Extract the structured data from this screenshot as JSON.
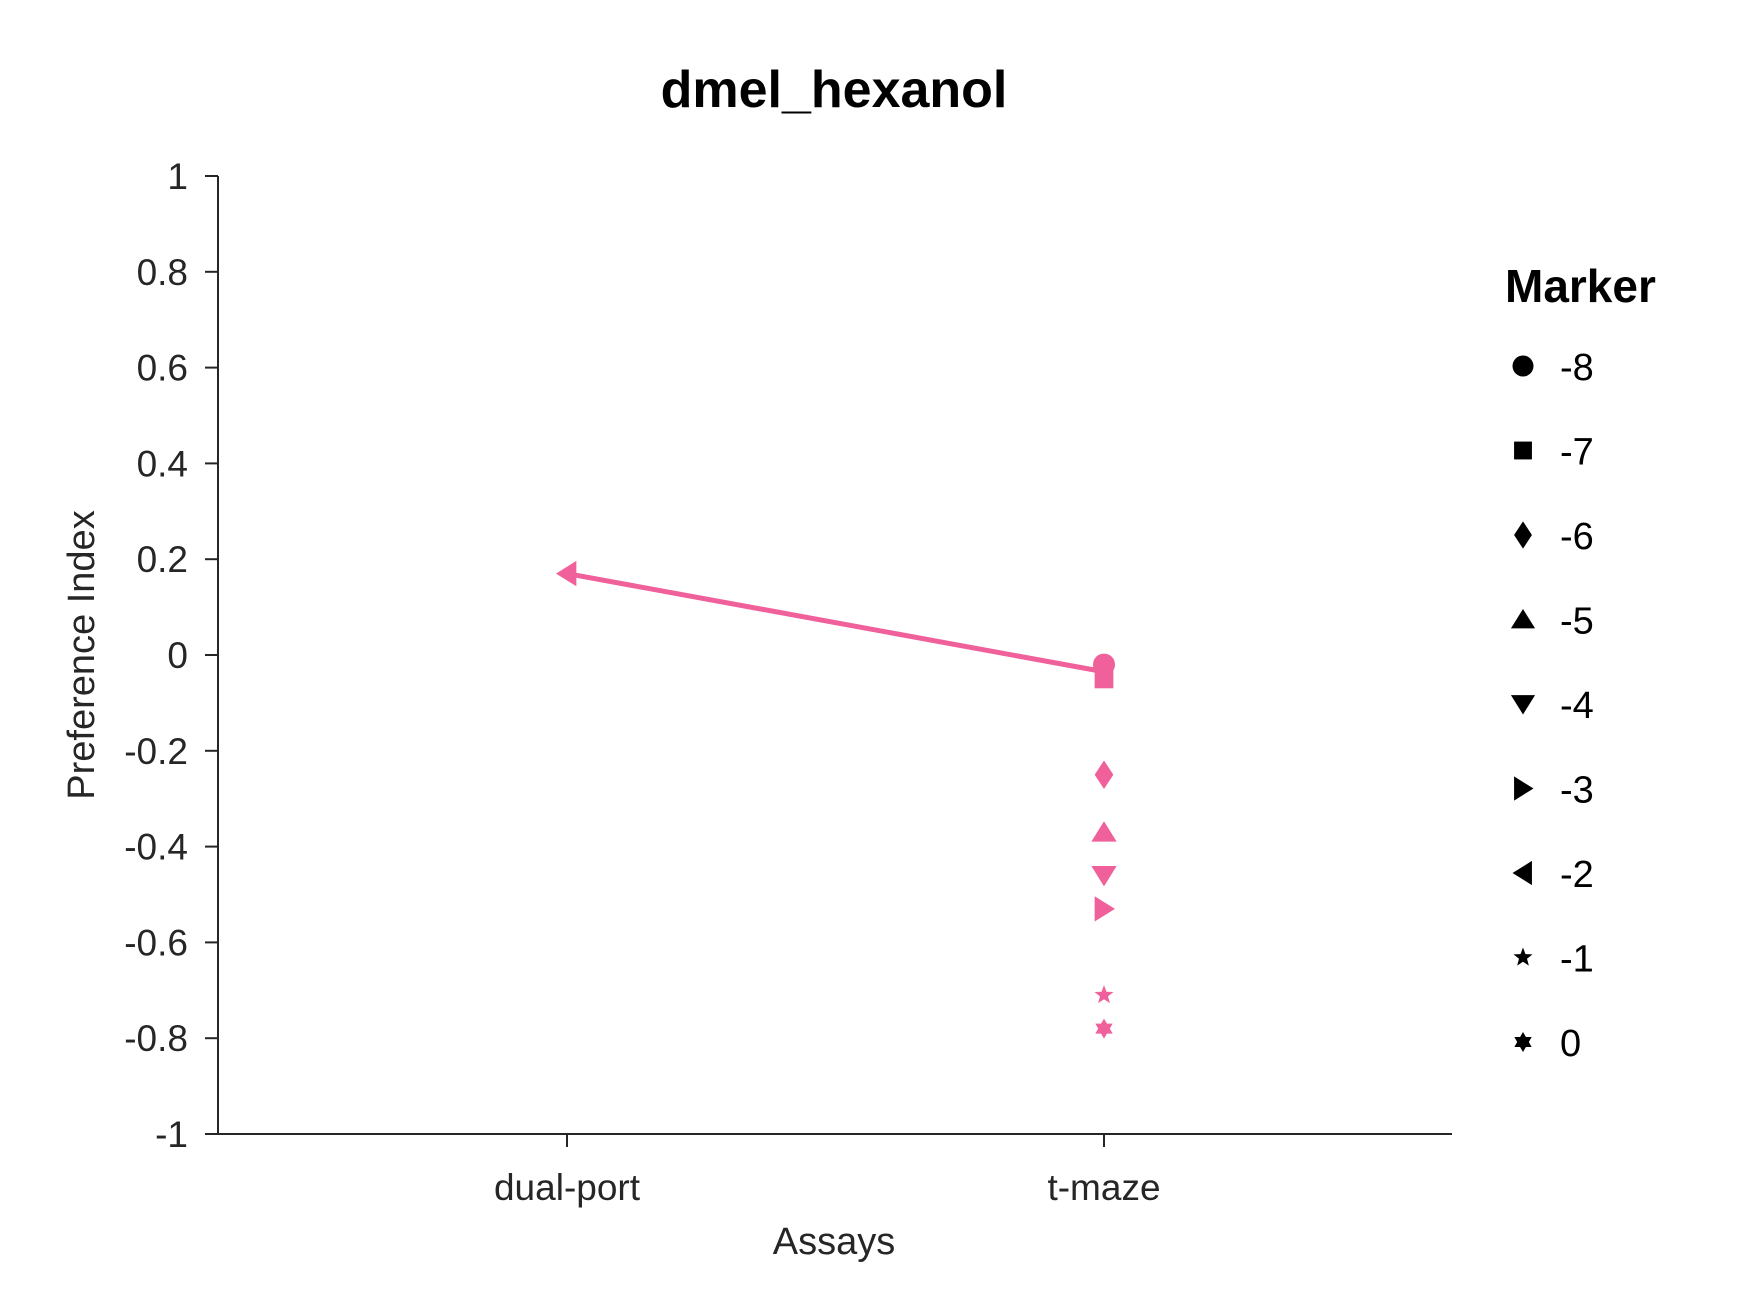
{
  "chart_data": {
    "type": "scatter",
    "title": "dmel_hexanol",
    "xlabel": "Assays",
    "ylabel": "Preference Index",
    "categories": [
      "dual-port",
      "t-maze"
    ],
    "ylim": [
      -1,
      1
    ],
    "yticks": [
      "1",
      "0.8",
      "0.6",
      "0.4",
      "0.2",
      "0",
      "-0.2",
      "-0.4",
      "-0.6",
      "-0.8",
      "-1"
    ],
    "color": "#f0609a",
    "points": [
      {
        "category": "dual-port",
        "y": 0.17,
        "marker": "triangle-left"
      },
      {
        "category": "t-maze",
        "y": -0.02,
        "marker": "circle"
      },
      {
        "category": "t-maze",
        "y": -0.05,
        "marker": "square"
      },
      {
        "category": "t-maze",
        "y": -0.25,
        "marker": "diamond"
      },
      {
        "category": "t-maze",
        "y": -0.37,
        "marker": "triangle-up"
      },
      {
        "category": "t-maze",
        "y": -0.46,
        "marker": "triangle-down"
      },
      {
        "category": "t-maze",
        "y": -0.53,
        "marker": "triangle-right"
      },
      {
        "category": "t-maze",
        "y": -0.71,
        "marker": "star"
      },
      {
        "category": "t-maze",
        "y": -0.78,
        "marker": "hexagram"
      }
    ],
    "line": [
      {
        "category": "t-maze",
        "y": -0.035
      },
      {
        "category": "dual-port",
        "y": 0.17
      }
    ],
    "legend": {
      "title": "Marker",
      "placement": "right",
      "entries": [
        {
          "label": "-8",
          "marker": "circle"
        },
        {
          "label": "-7",
          "marker": "square"
        },
        {
          "label": "-6",
          "marker": "diamond"
        },
        {
          "label": "-5",
          "marker": "triangle-up"
        },
        {
          "label": "-4",
          "marker": "triangle-down"
        },
        {
          "label": "-3",
          "marker": "triangle-right"
        },
        {
          "label": "-2",
          "marker": "triangle-left"
        },
        {
          "label": "-1",
          "marker": "star"
        },
        {
          "label": "0",
          "marker": "hexagram"
        }
      ]
    }
  }
}
